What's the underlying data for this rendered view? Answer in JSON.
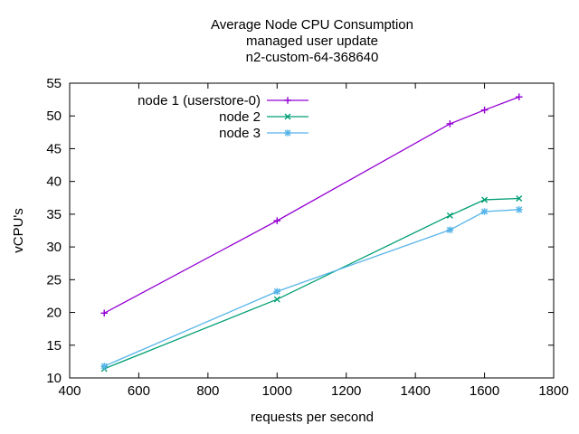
{
  "window": {
    "background": "#ffffff"
  },
  "chart_data": {
    "type": "line",
    "title_lines": [
      "Average Node CPU Consumption",
      "managed user update",
      "n2-custom-64-368640"
    ],
    "title": "Average Node CPU Consumption managed user update n2-custom-64-368640",
    "xlabel": "requests per second",
    "ylabel": "vCPU's",
    "x": [
      500,
      1000,
      1500,
      1600,
      1700
    ],
    "series": [
      {
        "name": "node 1 (userstore-0)",
        "color": "#9400d3",
        "marker": "plus",
        "values": [
          19.9,
          34.0,
          48.8,
          50.9,
          52.9
        ]
      },
      {
        "name": "node 2",
        "color": "#009e73",
        "marker": "cross",
        "values": [
          11.4,
          22.0,
          34.8,
          37.2,
          37.4
        ]
      },
      {
        "name": "node 3",
        "color": "#56b4e9",
        "marker": "asterisk",
        "values": [
          11.8,
          23.2,
          32.6,
          35.4,
          35.7
        ]
      }
    ],
    "xlim": [
      400,
      1800
    ],
    "ylim": [
      10,
      55
    ],
    "xticks": [
      400,
      600,
      800,
      1000,
      1200,
      1400,
      1600,
      1800
    ],
    "yticks": [
      10,
      15,
      20,
      25,
      30,
      35,
      40,
      45,
      50,
      55
    ],
    "grid": false,
    "legend_position": "top-left-inside",
    "axis_color": "#000000",
    "text_color": "#000000"
  }
}
